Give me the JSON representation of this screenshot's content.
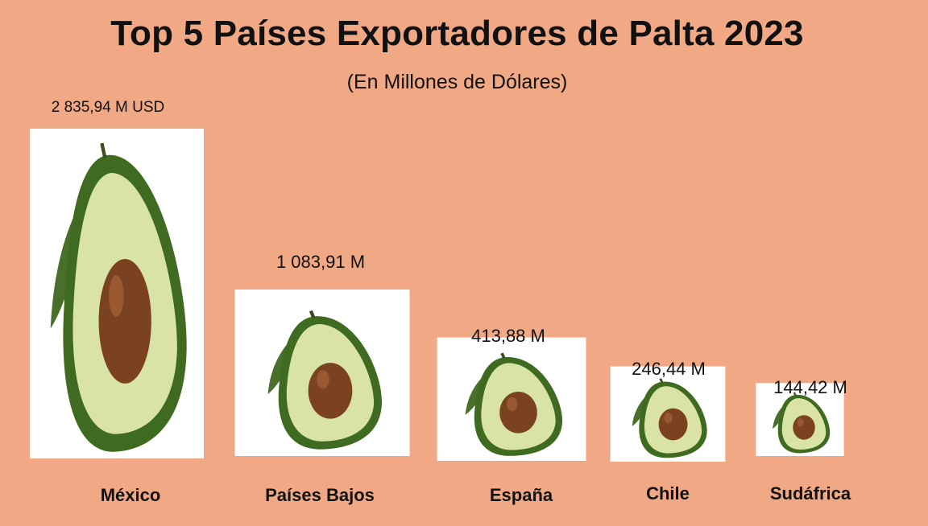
{
  "chart_data": {
    "type": "bar",
    "title": "Top 5 Países Exportadores de Palta 2023",
    "subtitle": "(En Millones de Dólares)",
    "unit": "Millones de Dólares (USD)",
    "categories": [
      "México",
      "Países Bajos",
      "España",
      "Chile",
      "Sudáfrica"
    ],
    "values": [
      2835.94,
      1083.91,
      413.88,
      246.44,
      144.42
    ],
    "value_labels": [
      "2 835,94 M USD",
      "1 083,91 M",
      "413,88 M",
      "246,44 M",
      "144,42 M"
    ],
    "mark": "avocado-image",
    "grid": false,
    "legend": "none"
  },
  "colors": {
    "background": "#f1a985",
    "card": "#ffffff",
    "avocado_skin": "#3f6b21",
    "avocado_flesh": "#d9e3a6",
    "pit": "#7a4220",
    "leaf": "#4a6f2a"
  }
}
